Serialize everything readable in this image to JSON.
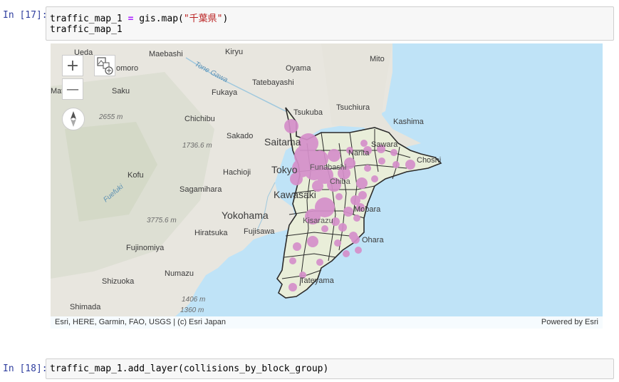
{
  "cell17": {
    "prompt": "In [17]:",
    "line1": {
      "var": "traffic_map_1",
      "op": "=",
      "call": "gis.map(",
      "str": "\"千葉県\"",
      "close": ")"
    },
    "line2": "traffic_map_1"
  },
  "map": {
    "labels": {
      "ueda": "Ueda",
      "maebashi": "Maebashi",
      "kiryu": "Kiryu",
      "mito": "Mito",
      "komoro": "omoro",
      "oyama": "Oyama",
      "tone_gawa": "Tone Gawa",
      "matsumoto": "Mat",
      "saku": "Saku",
      "fukaya": "Fukaya",
      "tatebayashi": "Tatebayashi",
      "tsukuba": "Tsukuba",
      "tsuchiura": "Tsuchiura",
      "kashima": "Kashima",
      "peak2655": "2655 m",
      "chichibu": "Chichibu",
      "sakado": "Sakado",
      "saitama": "Saitama",
      "sawara": "Sawara",
      "choshi": "Choshi",
      "narita": "Narita",
      "peak1736": "1736.6 m",
      "hachioji": "Hachioji",
      "tokyo": "Tokyo",
      "funabashi": "Funabashi",
      "chiba": "Chiba",
      "kofu": "Kofu",
      "fuefuki": "Fuefuki",
      "sagamihara": "Sagamihara",
      "kawasaki": "Kawasaki",
      "yokohama": "Yokohama",
      "mobara": "Mobara",
      "peak3775": "3775.6 m",
      "hiratsuka": "Hiratsuka",
      "fujisawa": "Fujisawa",
      "kisarazu": "Kisarazu",
      "ohara": "Ohara",
      "fujinomiya": "Fujinomiya",
      "numazu": "Numazu",
      "shizuoka": "Shizuoka",
      "tateyama": "Tateyama",
      "peak1406": "1406 m",
      "peak1360": "1360 m",
      "shimada": "Shimada"
    },
    "controls": {
      "zoom_in": "+",
      "zoom_out": "—"
    },
    "attribution": "Esri, HERE, Garmin, FAO, USGS | (c) Esri Japan",
    "powered_by": "Powered by Esri",
    "colors": {
      "water": "#bfe3f7",
      "land": "#e8e6df",
      "prefecture": "#e9eed9",
      "dot": "#d58fca",
      "outline": "#2b2b2b"
    }
  },
  "cell18": {
    "prompt": "In [18]:",
    "code": "traffic_map_1.add_layer(collisions_by_block_group)"
  }
}
